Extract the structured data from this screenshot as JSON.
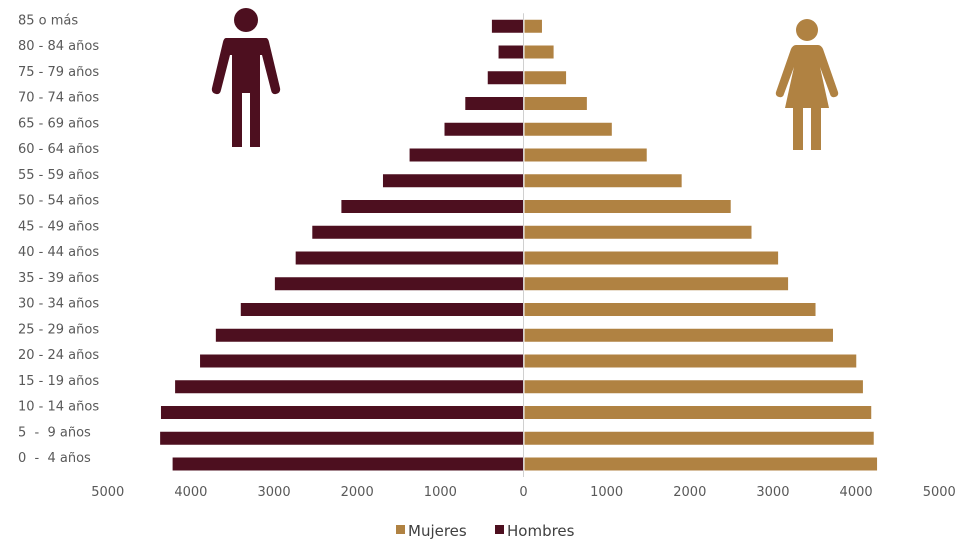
{
  "chart_data": {
    "type": "bar",
    "orientation": "horizontal",
    "layout": "population-pyramid",
    "categories": [
      "0  -  4 años",
      "5  -  9 años",
      "10 - 14 años",
      "15 - 19 años",
      "20 - 24 años",
      "25 - 29 años",
      "30 - 34 años",
      "35 - 39 años",
      "40 - 44 años",
      "45 - 49 años",
      "50 - 54 años",
      "55 - 59 años",
      "60 - 64 años",
      "65 - 69 años",
      "70 - 74 años",
      "75 - 79 años",
      "80 - 84 años",
      "85 o más"
    ],
    "series": [
      {
        "name": "Hombres",
        "side": "left",
        "color": "#4d0f1f",
        "values": [
          4220,
          4370,
          4360,
          4190,
          3890,
          3700,
          3400,
          2990,
          2740,
          2540,
          2190,
          1690,
          1370,
          950,
          700,
          430,
          300,
          380
        ]
      },
      {
        "name": "Mujeres",
        "side": "right",
        "color": "#b08242",
        "values": [
          4240,
          4200,
          4170,
          4070,
          3990,
          3710,
          3500,
          3170,
          3050,
          2730,
          2480,
          1890,
          1470,
          1050,
          750,
          500,
          350,
          210
        ]
      }
    ],
    "xlim": [
      -5000,
      5000
    ],
    "x_ticks": [
      -5000,
      -4000,
      -3000,
      -2000,
      -1000,
      0,
      1000,
      2000,
      3000,
      4000,
      5000
    ],
    "x_tick_labels": [
      "5000",
      "4000",
      "3000",
      "2000",
      "1000",
      "0",
      "1000",
      "2000",
      "3000",
      "4000",
      "5000"
    ],
    "grid": false,
    "legend": {
      "placement": "bottom-center",
      "order": [
        "Mujeres",
        "Hombres"
      ]
    },
    "title": "",
    "xlabel": "",
    "ylabel": ""
  },
  "icons": {
    "left": {
      "name": "man-icon",
      "color": "#4d0f1f"
    },
    "right": {
      "name": "woman-icon",
      "color": "#b08242"
    }
  }
}
